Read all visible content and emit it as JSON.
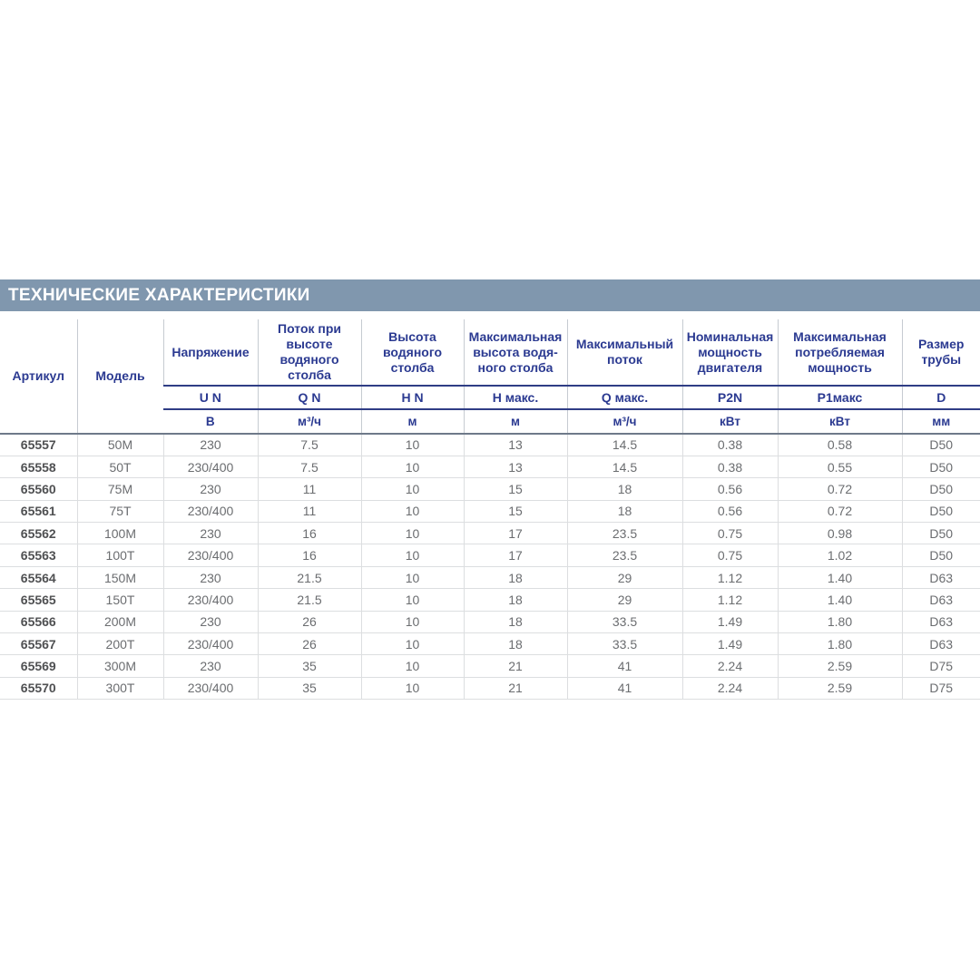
{
  "title_bar": {
    "text": "ТЕХНИЧЕСКИЕ ХАРАКТЕРИСТИКИ",
    "bg_color": "#8097AE",
    "text_color": "#FFFFFF"
  },
  "colors": {
    "header_text": "#2B3A91",
    "header_rule": "#2F3D85",
    "header_bottom_rule": "#6E7989",
    "cell_text": "#6B6D70",
    "article_text": "#4F5052",
    "grid_line": "#DCDEE0"
  },
  "table": {
    "columns": [
      {
        "label": "Артикул",
        "symbol": "",
        "unit": ""
      },
      {
        "label": "Модель",
        "symbol": "",
        "unit": ""
      },
      {
        "label": "Напряжение",
        "symbol": "U N",
        "unit": "В"
      },
      {
        "label": "Поток при высоте водяного столба",
        "symbol": "Q N",
        "unit": "м³/ч"
      },
      {
        "label": "Высота водяного столба",
        "symbol": "H N",
        "unit": "м"
      },
      {
        "label": "Максимальная высота водя-ного столба",
        "symbol": "Н макс.",
        "unit": "м"
      },
      {
        "label": "Максимальный поток",
        "symbol": "Q макс.",
        "unit": "м³/ч"
      },
      {
        "label": "Номинальная мощность двигателя",
        "symbol": "P2N",
        "unit": "кВт"
      },
      {
        "label": "Максимальная потребляемая мощность",
        "symbol": "P1макс",
        "unit": "кВт"
      },
      {
        "label": "Размер трубы",
        "symbol": "D",
        "unit": "мм"
      }
    ],
    "rows": [
      [
        "65557",
        "50M",
        "230",
        "7.5",
        "10",
        "13",
        "14.5",
        "0.38",
        "0.58",
        "D50"
      ],
      [
        "65558",
        "50T",
        "230/400",
        "7.5",
        "10",
        "13",
        "14.5",
        "0.38",
        "0.55",
        "D50"
      ],
      [
        "65560",
        "75M",
        "230",
        "11",
        "10",
        "15",
        "18",
        "0.56",
        "0.72",
        "D50"
      ],
      [
        "65561",
        "75T",
        "230/400",
        "11",
        "10",
        "15",
        "18",
        "0.56",
        "0.72",
        "D50"
      ],
      [
        "65562",
        "100M",
        "230",
        "16",
        "10",
        "17",
        "23.5",
        "0.75",
        "0.98",
        "D50"
      ],
      [
        "65563",
        "100T",
        "230/400",
        "16",
        "10",
        "17",
        "23.5",
        "0.75",
        "1.02",
        "D50"
      ],
      [
        "65564",
        "150M",
        "230",
        "21.5",
        "10",
        "18",
        "29",
        "1.12",
        "1.40",
        "D63"
      ],
      [
        "65565",
        "150T",
        "230/400",
        "21.5",
        "10",
        "18",
        "29",
        "1.12",
        "1.40",
        "D63"
      ],
      [
        "65566",
        "200M",
        "230",
        "26",
        "10",
        "18",
        "33.5",
        "1.49",
        "1.80",
        "D63"
      ],
      [
        "65567",
        "200T",
        "230/400",
        "26",
        "10",
        "18",
        "33.5",
        "1.49",
        "1.80",
        "D63"
      ],
      [
        "65569",
        "300M",
        "230",
        "35",
        "10",
        "21",
        "41",
        "2.24",
        "2.59",
        "D75"
      ],
      [
        "65570",
        "300T",
        "230/400",
        "35",
        "10",
        "21",
        "41",
        "2.24",
        "2.59",
        "D75"
      ]
    ]
  }
}
